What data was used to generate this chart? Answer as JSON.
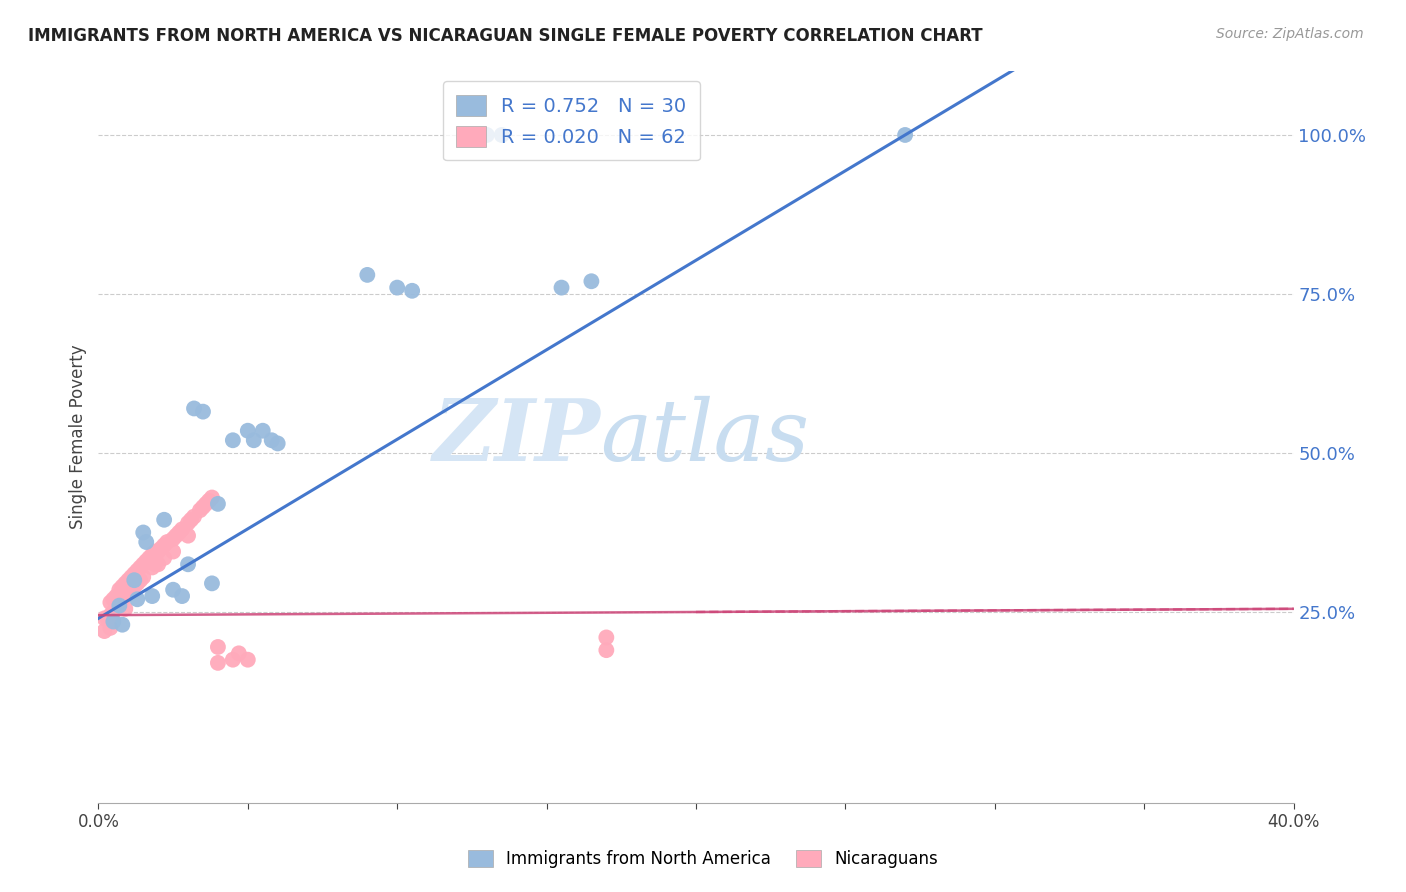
{
  "title": "IMMIGRANTS FROM NORTH AMERICA VS NICARAGUAN SINGLE FEMALE POVERTY CORRELATION CHART",
  "source": "Source: ZipAtlas.com",
  "ylabel": "Single Female Poverty",
  "xlim": [
    0.0,
    0.4
  ],
  "ylim": [
    -0.05,
    1.1
  ],
  "plot_ylim": [
    -0.05,
    1.1
  ],
  "ytick_positions": [
    0.25,
    0.5,
    0.75,
    1.0
  ],
  "ytick_labels": [
    "25.0%",
    "50.0%",
    "75.0%",
    "100.0%"
  ],
  "blue_R": 0.752,
  "blue_N": 30,
  "pink_R": 0.02,
  "pink_N": 62,
  "blue_color": "#99BBDD",
  "pink_color": "#FFAABB",
  "blue_line_color": "#4477CC",
  "pink_line_color": "#CC4477",
  "watermark_zip": "ZIP",
  "watermark_atlas": "atlas",
  "blue_points_x": [
    0.005,
    0.007,
    0.008,
    0.012,
    0.013,
    0.015,
    0.016,
    0.018,
    0.022,
    0.025,
    0.028,
    0.03,
    0.032,
    0.035,
    0.038,
    0.04,
    0.045,
    0.05,
    0.052,
    0.055,
    0.058,
    0.06,
    0.09,
    0.1,
    0.105,
    0.13,
    0.135,
    0.155,
    0.165,
    0.27
  ],
  "blue_points_y": [
    0.235,
    0.26,
    0.23,
    0.3,
    0.27,
    0.375,
    0.36,
    0.275,
    0.395,
    0.285,
    0.275,
    0.325,
    0.57,
    0.565,
    0.295,
    0.42,
    0.52,
    0.535,
    0.52,
    0.535,
    0.52,
    0.515,
    0.78,
    0.76,
    0.755,
    1.0,
    1.0,
    0.76,
    0.77,
    1.0
  ],
  "pink_points_x": [
    0.002,
    0.002,
    0.003,
    0.004,
    0.004,
    0.004,
    0.005,
    0.005,
    0.006,
    0.006,
    0.007,
    0.007,
    0.008,
    0.008,
    0.009,
    0.009,
    0.009,
    0.01,
    0.01,
    0.011,
    0.011,
    0.012,
    0.012,
    0.013,
    0.013,
    0.014,
    0.014,
    0.015,
    0.015,
    0.016,
    0.017,
    0.018,
    0.018,
    0.019,
    0.019,
    0.02,
    0.02,
    0.021,
    0.022,
    0.022,
    0.023,
    0.025,
    0.025,
    0.026,
    0.027,
    0.028,
    0.03,
    0.03,
    0.031,
    0.032,
    0.034,
    0.035,
    0.036,
    0.037,
    0.038,
    0.04,
    0.04,
    0.045,
    0.047,
    0.05,
    0.17,
    0.17
  ],
  "pink_points_y": [
    0.24,
    0.22,
    0.24,
    0.265,
    0.245,
    0.225,
    0.27,
    0.25,
    0.275,
    0.255,
    0.285,
    0.265,
    0.29,
    0.27,
    0.295,
    0.275,
    0.255,
    0.3,
    0.28,
    0.305,
    0.285,
    0.31,
    0.29,
    0.315,
    0.295,
    0.32,
    0.3,
    0.325,
    0.305,
    0.33,
    0.335,
    0.34,
    0.32,
    0.345,
    0.325,
    0.345,
    0.325,
    0.35,
    0.355,
    0.335,
    0.36,
    0.365,
    0.345,
    0.37,
    0.375,
    0.38,
    0.39,
    0.37,
    0.395,
    0.4,
    0.41,
    0.415,
    0.42,
    0.425,
    0.43,
    0.17,
    0.195,
    0.175,
    0.185,
    0.175,
    0.19,
    0.21
  ]
}
